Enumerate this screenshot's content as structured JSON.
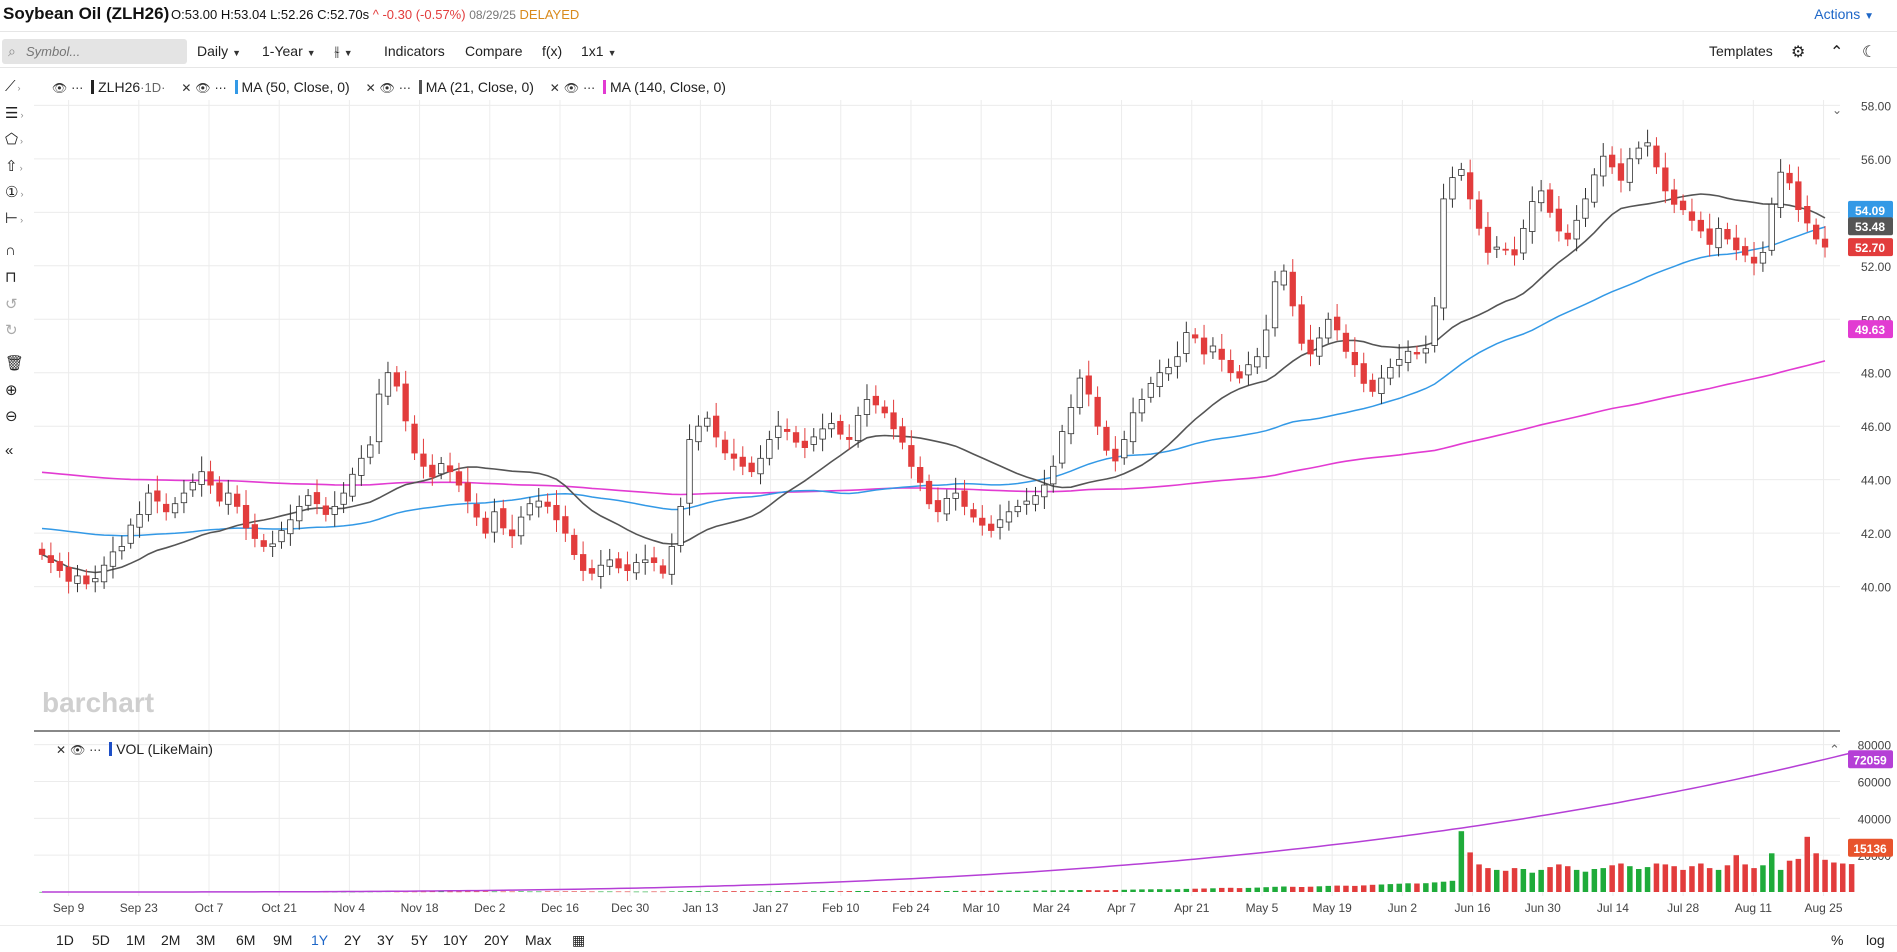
{
  "header": {
    "title": "Soybean Oil (ZLH26)",
    "open": "O:53.00",
    "high": "H:53.04",
    "low": "L:52.26",
    "close": "C:52.70s",
    "arrow": "^",
    "change": "-0.30 (-0.57%)",
    "date": "08/29/25",
    "status": "DELAYED",
    "actions_label": "Actions"
  },
  "toolbar": {
    "search_placeholder": "Symbol...",
    "interval": "Daily",
    "range": "1-Year",
    "indicators": "Indicators",
    "compare": "Compare",
    "fx": "f(x)",
    "layout": "1x1",
    "templates": "Templates"
  },
  "legend": {
    "symbol": "ZLH26",
    "symbol_period": "·1D·",
    "ma50": "MA (50, Close, 0)",
    "ma21": "MA (21, Close, 0)",
    "ma140": "MA (140, Close, 0)",
    "volume": "VOL (LikeMain)"
  },
  "watermark": "barchart",
  "range_buttons": [
    "1D",
    "5D",
    "1M",
    "2M",
    "3M",
    "6M",
    "9M",
    "1Y",
    "2Y",
    "3Y",
    "5Y",
    "10Y",
    "20Y",
    "Max"
  ],
  "active_range": "1Y",
  "bottom_right": {
    "percent": "%",
    "log": "log"
  },
  "colors": {
    "up": "#ffffff",
    "down": "#e23c3c",
    "ma50": "#3399e6",
    "ma21": "#555555",
    "ma140": "#e23bd2",
    "vol_up": "#1fab3a",
    "vol_down": "#e23c3c",
    "vol_avg": "#b53fd6"
  },
  "chart_data": [
    {
      "type": "candlestick",
      "title": "Soybean Oil (ZLH26)",
      "x_tick_labels": [
        "Sep 9",
        "Sep 23",
        "Oct 7",
        "Oct 21",
        "Nov 4",
        "Nov 18",
        "Dec 2",
        "Dec 16",
        "Dec 30",
        "Jan 13",
        "Jan 27",
        "Feb 10",
        "Feb 24",
        "Mar 10",
        "Mar 24",
        "Apr 7",
        "Apr 21",
        "May 5",
        "May 19",
        "Jun 2",
        "Jun 16",
        "Jun 30",
        "Jul 14",
        "Jul 28",
        "Aug 11",
        "Aug 25"
      ],
      "y_tick_labels": [
        "40.00",
        "42.00",
        "44.00",
        "46.00",
        "48.00",
        "50.00",
        "52.00",
        "54.00",
        "56.00",
        "58.00"
      ],
      "ylim": [
        39.5,
        58.5
      ],
      "grid": true,
      "close_series": [
        41.2,
        40.9,
        40.6,
        40.2,
        40.4,
        40.1,
        40.3,
        40.8,
        41.3,
        41.5,
        42.3,
        42.7,
        43.5,
        43.2,
        42.8,
        43.1,
        43.5,
        43.9,
        44.3,
        43.8,
        43.2,
        43.5,
        43.0,
        42.2,
        41.8,
        41.5,
        41.6,
        42.1,
        42.5,
        43.0,
        43.4,
        43.1,
        42.7,
        43.0,
        43.5,
        44.2,
        44.8,
        45.3,
        47.2,
        48.0,
        47.5,
        46.2,
        45.0,
        44.5,
        44.1,
        44.6,
        44.3,
        43.8,
        43.2,
        42.6,
        42.0,
        42.8,
        42.2,
        41.9,
        42.6,
        43.1,
        43.2,
        43.0,
        42.5,
        42.0,
        41.2,
        40.6,
        40.5,
        40.8,
        41.0,
        40.7,
        40.6,
        40.9,
        41.0,
        40.9,
        40.5,
        41.5,
        43.0,
        45.5,
        46.0,
        46.3,
        45.6,
        45.0,
        44.8,
        44.5,
        44.3,
        44.8,
        45.5,
        46.0,
        45.8,
        45.4,
        45.2,
        45.6,
        45.9,
        46.1,
        45.7,
        45.5,
        46.4,
        47.0,
        46.8,
        46.5,
        45.9,
        45.4,
        44.5,
        43.9,
        43.1,
        42.8,
        43.3,
        43.5,
        43.0,
        42.6,
        42.3,
        42.1,
        42.5,
        42.8,
        43.0,
        43.2,
        43.4,
        43.8,
        44.5,
        45.8,
        46.7,
        47.8,
        47.2,
        46.0,
        45.1,
        44.7,
        45.5,
        46.5,
        47.0,
        47.6,
        48.0,
        48.2,
        48.6,
        49.5,
        49.3,
        48.7,
        49.0,
        48.5,
        48.0,
        47.8,
        48.3,
        48.6,
        49.6,
        51.4,
        51.8,
        50.5,
        49.1,
        48.7,
        49.3,
        50.0,
        49.6,
        48.8,
        48.3,
        47.6,
        47.3,
        47.8,
        48.2,
        48.5,
        48.8,
        48.7,
        48.9,
        50.5,
        54.5,
        55.3,
        55.6,
        54.5,
        53.4,
        52.5,
        52.7,
        52.6,
        52.4,
        53.4,
        54.4,
        54.8,
        54.0,
        53.3,
        53.0,
        53.7,
        54.5,
        55.4,
        56.1,
        55.7,
        55.2,
        56.0,
        56.4,
        56.6,
        55.7,
        54.8,
        54.3,
        54.1,
        53.7,
        53.3,
        52.8,
        53.4,
        53.0,
        52.6,
        52.4,
        52.1,
        52.5,
        54.3,
        55.5,
        55.1,
        54.1,
        53.6,
        53.0,
        52.7
      ],
      "ohlc_last": {
        "open": 53.0,
        "high": 53.04,
        "low": 52.26,
        "close": 52.7
      },
      "series": [
        {
          "name": "MA (50, Close, 0)",
          "last_value": 54.09
        },
        {
          "name": "MA (21, Close, 0)",
          "last_value": 53.48
        },
        {
          "name": "MA (140, Close, 0)",
          "last_value": 49.63
        }
      ],
      "price_labels": {
        "ma50": "54.09",
        "ma21": "53.48",
        "last": "52.70",
        "ma140": "49.63"
      }
    },
    {
      "type": "bar",
      "title": "VOL (LikeMain)",
      "y_tick_labels": [
        "20000",
        "40000",
        "60000",
        "80000"
      ],
      "ylim": [
        0,
        82000
      ],
      "grid": true,
      "values": [
        60,
        80,
        120,
        100,
        90,
        140,
        110,
        90,
        130,
        150,
        170,
        110,
        160,
        140,
        130,
        120,
        150,
        170,
        180,
        160,
        150,
        140,
        150,
        170,
        200,
        190,
        180,
        160,
        140,
        170,
        200,
        220,
        180,
        160,
        170,
        190,
        210,
        230,
        260,
        250,
        230,
        220,
        200,
        240,
        260,
        250,
        240,
        230,
        260,
        280,
        300,
        270,
        260,
        280,
        300,
        290,
        270,
        300,
        320,
        310,
        330,
        300,
        290,
        280,
        270,
        260,
        250,
        240,
        230,
        260,
        280,
        320,
        400,
        480,
        430,
        400,
        380,
        420,
        440,
        410,
        390,
        380,
        430,
        470,
        450,
        420,
        410,
        450,
        500,
        470,
        450,
        480,
        520,
        560,
        540,
        530,
        500,
        520,
        560,
        600,
        620,
        590,
        560,
        580,
        600,
        640,
        620,
        650,
        700,
        720,
        680,
        720,
        760,
        800,
        850,
        950,
        1000,
        1100,
        1050,
        980,
        1000,
        1100,
        1200,
        1300,
        1400,
        1450,
        1500,
        1400,
        1500,
        1700,
        1800,
        1900,
        2000,
        2200,
        2300,
        2100,
        2200,
        2400,
        2600,
        2800,
        3000,
        2800,
        2700,
        2900,
        3100,
        3300,
        3500,
        3400,
        3300,
        3600,
        3900,
        4100,
        4300,
        4500,
        4700,
        4600,
        4800,
        5200,
        5600,
        6100,
        33000,
        21500,
        15000,
        13000,
        12000,
        11500,
        13000,
        12500,
        10500,
        12000,
        13500,
        15000,
        14000,
        12000,
        11000,
        12500,
        13000,
        14500,
        15500,
        14000,
        12500,
        13500,
        15500,
        15000,
        14000,
        12000,
        14000,
        15500,
        13000,
        12000,
        14500,
        20000,
        15000,
        13000,
        14500,
        21000,
        12000,
        17000,
        18000,
        30000,
        21000,
        17500,
        16000,
        15500,
        15136
      ],
      "series": [
        {
          "name": "Volume average",
          "last_value": 72059
        }
      ],
      "price_labels": {
        "avg": "72059",
        "last": "15136"
      }
    }
  ]
}
